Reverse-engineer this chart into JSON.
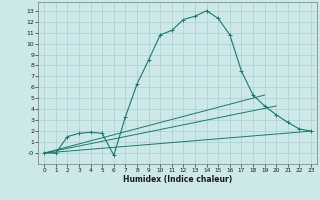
{
  "bg_color": "#cce8e8",
  "grid_color": "#aacfcf",
  "line_color": "#1a7a6a",
  "xlabel": "Humidex (Indice chaleur)",
  "xlim": [
    -0.5,
    23.5
  ],
  "ylim": [
    -1.0,
    13.8
  ],
  "xticks": [
    0,
    1,
    2,
    3,
    4,
    5,
    6,
    7,
    8,
    9,
    10,
    11,
    12,
    13,
    14,
    15,
    16,
    17,
    18,
    19,
    20,
    21,
    22,
    23
  ],
  "yticks": [
    0,
    1,
    2,
    3,
    4,
    5,
    6,
    7,
    8,
    9,
    10,
    11,
    12,
    13
  ],
  "ytick_labels": [
    "-0",
    "1",
    "2",
    "3",
    "4",
    "5",
    "6",
    "7",
    "8",
    "9",
    "10",
    "11",
    "12",
    "13"
  ],
  "line1_x": [
    0,
    1,
    2,
    3,
    4,
    5,
    6,
    7,
    8,
    9,
    10,
    11,
    12,
    13,
    14,
    15,
    16,
    17,
    18,
    19,
    20,
    21,
    22,
    23
  ],
  "line1_y": [
    0,
    0,
    1.5,
    1.8,
    1.9,
    1.8,
    -0.2,
    3.3,
    6.3,
    8.5,
    10.8,
    11.2,
    12.2,
    12.5,
    13.0,
    12.3,
    10.8,
    7.5,
    5.3,
    4.3,
    3.5,
    2.8,
    2.2,
    2.0
  ],
  "line2_x": [
    0,
    23
  ],
  "line2_y": [
    0,
    2.0
  ],
  "line3_x": [
    0,
    20
  ],
  "line3_y": [
    0,
    4.3
  ],
  "line4_x": [
    0,
    19
  ],
  "line4_y": [
    0,
    5.3
  ]
}
